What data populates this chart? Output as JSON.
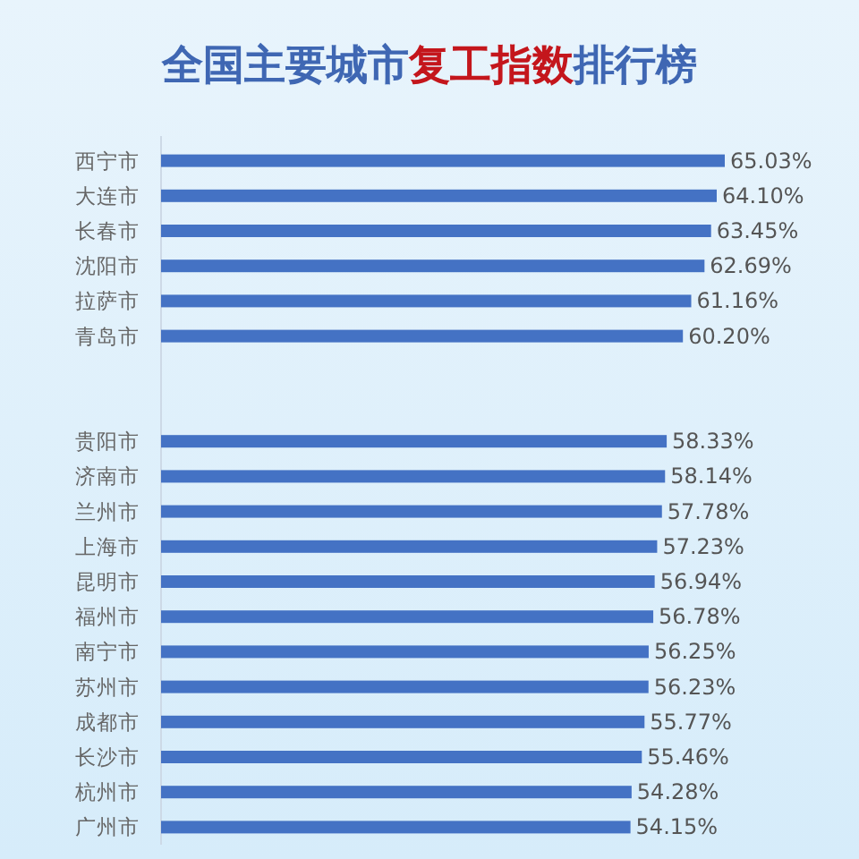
{
  "chart_data": {
    "type": "bar",
    "orientation": "horizontal",
    "title": "全国主要城市复工指数排行榜",
    "categories": [
      "西宁市",
      "大连市",
      "长春市",
      "沈阳市",
      "拉萨市",
      "青岛市",
      null,
      null,
      "贵阳市",
      "济南市",
      "兰州市",
      "上海市",
      "昆明市",
      "福州市",
      "南宁市",
      "苏州市",
      "成都市",
      "长沙市",
      "杭州市",
      "广州市"
    ],
    "values": [
      65.03,
      64.1,
      63.45,
      62.69,
      61.16,
      60.2,
      null,
      null,
      58.33,
      58.14,
      57.78,
      57.23,
      56.94,
      56.78,
      56.25,
      56.23,
      55.77,
      55.46,
      54.28,
      54.15
    ],
    "value_labels": [
      "65.03%",
      "64.10%",
      "63.45%",
      "62.69%",
      "61.16%",
      "60.20%",
      null,
      null,
      "58.33%",
      "58.14%",
      "57.78%",
      "57.23%",
      "56.94%",
      "56.78%",
      "56.25%",
      "56.23%",
      "55.77%",
      "55.46%",
      "54.28%",
      "54.15%"
    ],
    "color": "#4472c4"
  }
}
